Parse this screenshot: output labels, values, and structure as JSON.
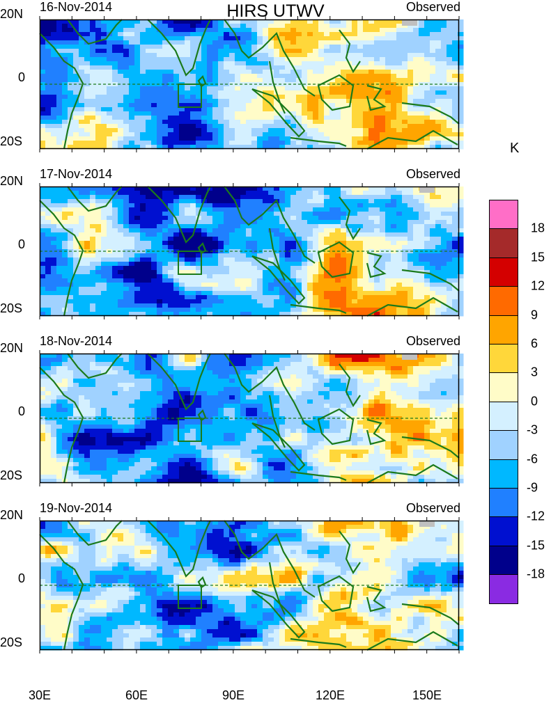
{
  "title": "HIRS UTWV",
  "unit": "K",
  "panels": [
    {
      "date": "16-Nov-2014",
      "label": "Observed"
    },
    {
      "date": "17-Nov-2014",
      "label": "Observed"
    },
    {
      "date": "18-Nov-2014",
      "label": "Observed"
    },
    {
      "date": "19-Nov-2014",
      "label": "Observed"
    }
  ],
  "lat_labels": {
    "north": "20N",
    "equator": "0",
    "south": "20S"
  },
  "lon_labels": [
    "30E",
    "60E",
    "90E",
    "120E",
    "150E"
  ],
  "colorbar": {
    "labels": [
      "18",
      "15",
      "12",
      "9",
      "6",
      "3",
      "0",
      "-3",
      "-6",
      "-9",
      "-12",
      "-15",
      "-18"
    ],
    "colors": [
      "#ff6ec7",
      "#a52a2a",
      "#d40000",
      "#ff6a00",
      "#ffa500",
      "#ffd73a",
      "#fffcc8",
      "#d4f0ff",
      "#a0d2ff",
      "#00b8ff",
      "#2080ff",
      "#0010d0",
      "#00008b",
      "#8a2be2"
    ]
  },
  "colors": {
    "coastline": "#1b7a1b",
    "missing": "#c0c0c0"
  }
}
